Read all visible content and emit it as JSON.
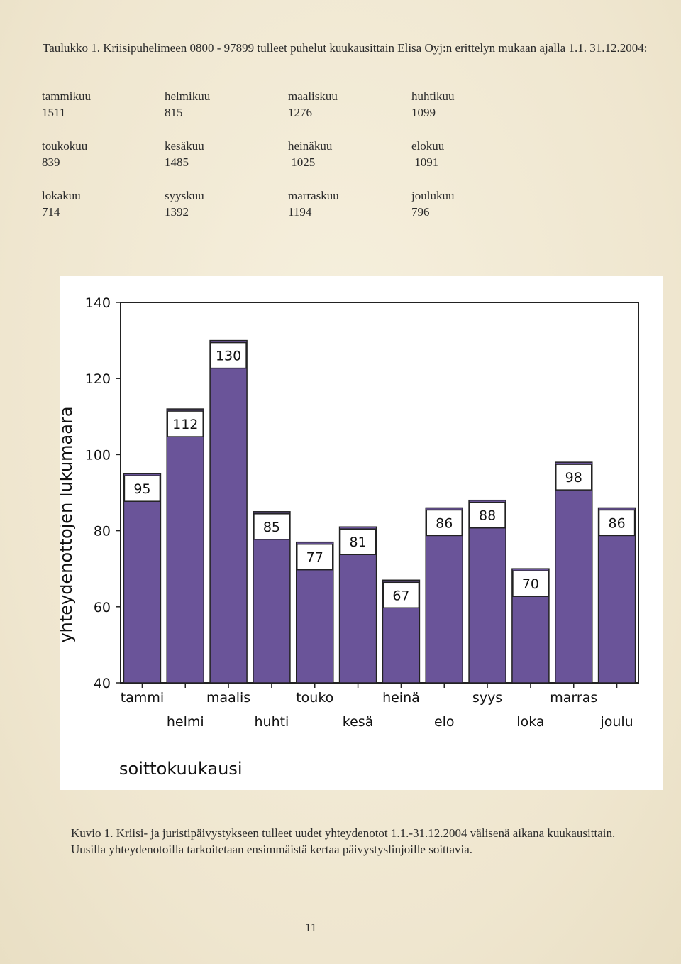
{
  "intro_text": "Taulukko 1. Kriisipuhelimeen 0800 - 97899 tulleet puhelut kuukausittain Elisa Oyj:n erittelyn mukaan  ajalla 1.1.  31.12.2004:",
  "month_table": {
    "rows": [
      [
        {
          "month": "tammikuu",
          "value": "1511"
        },
        {
          "month": "helmikuu",
          "value": "815"
        },
        {
          "month": "maaliskuu",
          "value": "1276"
        },
        {
          "month": "huhtikuu",
          "value": "1099"
        }
      ],
      [
        {
          "month": "toukokuu",
          "value": "839"
        },
        {
          "month": "kesäkuu",
          "value": "1485"
        },
        {
          "month": "heinäkuu",
          "value": " 1025"
        },
        {
          "month": "elokuu",
          "value": " 1091"
        }
      ],
      [
        {
          "month": "lokakuu",
          "value": "714"
        },
        {
          "month": "syyskuu",
          "value": "1392"
        },
        {
          "month": "marraskuu",
          "value": "1194"
        },
        {
          "month": "joulukuu",
          "value": "796"
        }
      ]
    ]
  },
  "chart_data": {
    "type": "bar",
    "categories": [
      "tammi",
      "helmi",
      "maalis",
      "huhti",
      "touko",
      "kesä",
      "heinä",
      "elo",
      "syys",
      "loka",
      "marras",
      "joulu"
    ],
    "values": [
      95,
      112,
      130,
      85,
      77,
      81,
      67,
      86,
      88,
      70,
      98,
      86
    ],
    "data_labels": [
      "95",
      "112",
      "130",
      "85",
      "77",
      "81",
      "67",
      "86",
      "88",
      "70",
      "98",
      "86"
    ],
    "xlabel": "soittokuukausi",
    "ylabel": "yhteydenottojen lukumäärä",
    "ylim": [
      40,
      140
    ],
    "yticks": [
      40,
      60,
      80,
      100,
      120,
      140
    ],
    "ytick_labels": [
      "40",
      "60",
      "80",
      "100",
      "120",
      "140"
    ],
    "bar_color": "#6a5499",
    "grid": false,
    "legend": "none"
  },
  "caption": "Kuvio 1. Kriisi- ja juristipäivystykseen tulleet uudet yhteydenotot 1.1.-31.12.2004 välisenä aikana kuukausittain. Uusilla yhteydenotoilla tarkoitetaan ensimmäistä kertaa päivystyslinjoille soittavia.",
  "page_number": "11"
}
